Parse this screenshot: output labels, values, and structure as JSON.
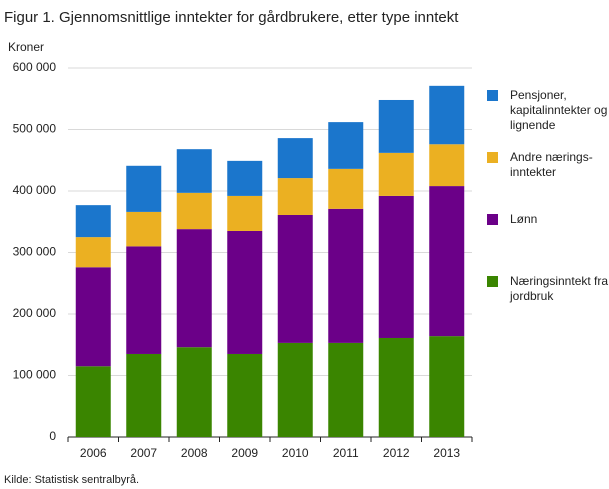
{
  "chart_data": {
    "type": "stacked_bar",
    "title": "Figur 1. Gjennomsnittlige inntekter for gårdbrukere, etter type inntekt",
    "y_label": "Kroner",
    "source": "Kilde: Statistisk sentralbyrå.",
    "categories": [
      "2006",
      "2007",
      "2008",
      "2009",
      "2010",
      "2011",
      "2012",
      "2013"
    ],
    "series": [
      {
        "name": "Næringsinntekt fra jordbruk",
        "color": "#3a8500",
        "values": [
          115000,
          135000,
          146000,
          135000,
          153000,
          153000,
          161000,
          164000
        ]
      },
      {
        "name": "Lønn",
        "color": "#6b0088",
        "values": [
          161000,
          175000,
          192000,
          200000,
          208000,
          218000,
          231000,
          244000
        ]
      },
      {
        "name": "Andre nærings-inntekter",
        "color": "#ebb022",
        "values": [
          49000,
          56000,
          59000,
          57000,
          60000,
          65000,
          70000,
          68000
        ]
      },
      {
        "name": "Pensjoner, kapitalinntekter og lignende",
        "color": "#1b76cc",
        "values": [
          52000,
          75000,
          71000,
          57000,
          65000,
          76000,
          86000,
          95000
        ]
      }
    ],
    "ylim": [
      0,
      600000
    ],
    "yticks": [
      0,
      {
        "value": 100000,
        "label": "100 000"
      },
      {
        "value": 200000,
        "label": "200 000"
      },
      {
        "value": 300000,
        "label": "300 000"
      },
      {
        "value": 400000,
        "label": "400 000"
      },
      {
        "value": 500000,
        "label": "500 000"
      },
      {
        "value": 600000,
        "label": "600 000"
      }
    ],
    "grid": true
  }
}
